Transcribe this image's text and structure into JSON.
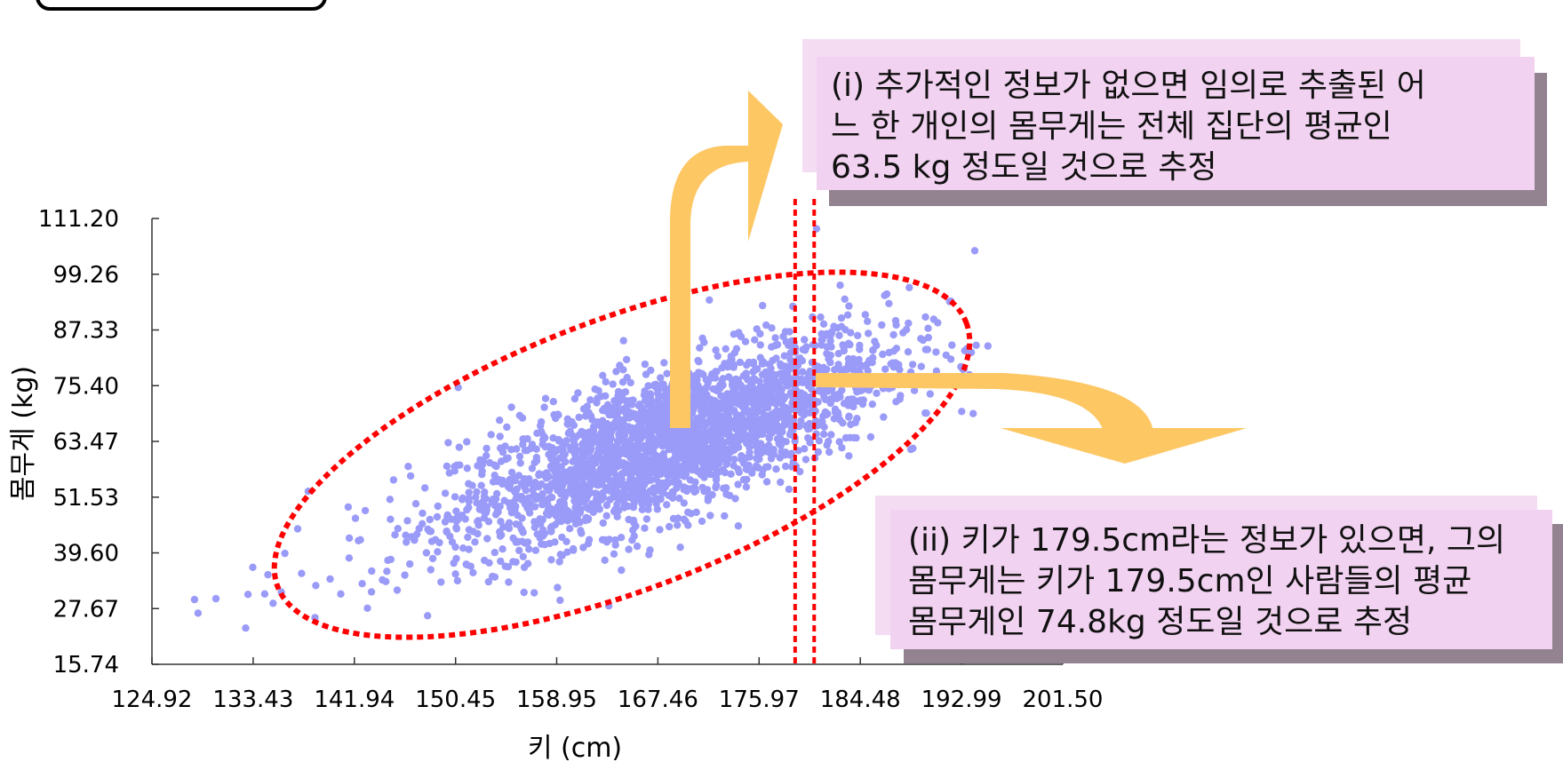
{
  "chart_data": {
    "type": "scatter",
    "title": "",
    "xlabel": "키 (cm)",
    "ylabel": "몸무게 (kg)",
    "xlim": [
      124.92,
      201.5
    ],
    "ylim": [
      15.74,
      111.2
    ],
    "xticks": [
      "124.92",
      "133.43",
      "141.94",
      "150.45",
      "158.95",
      "167.46",
      "175.97",
      "184.48",
      "192.99",
      "201.50"
    ],
    "yticks": [
      "111.20",
      "99.26",
      "87.33",
      "75.40",
      "63.47",
      "51.53",
      "39.60",
      "27.67",
      "15.74"
    ],
    "point_color": "#9a9af8",
    "sample_points": [
      [
        128.5,
        29.6
      ],
      [
        128.8,
        26.7
      ],
      [
        130.3,
        29.8
      ],
      [
        132.8,
        23.5
      ],
      [
        133.0,
        30.7
      ],
      [
        133.4,
        36.5
      ],
      [
        134.4,
        30.8
      ],
      [
        135.1,
        28.8
      ],
      [
        136.1,
        39.5
      ],
      [
        135.8,
        31.2
      ],
      [
        137.5,
        35.2
      ],
      [
        138.7,
        32.6
      ],
      [
        139.9,
        34.0
      ],
      [
        140.8,
        30.8
      ],
      [
        141.5,
        38.5
      ],
      [
        142.6,
        33.0
      ],
      [
        143.4,
        35.7
      ],
      [
        144.3,
        33.8
      ],
      [
        145.0,
        38.2
      ],
      [
        145.6,
        44.8
      ],
      [
        146.3,
        41.9
      ],
      [
        147.2,
        43.6
      ],
      [
        148.0,
        39.6
      ],
      [
        148.9,
        47.3
      ],
      [
        149.7,
        44.1
      ],
      [
        150.5,
        45.0
      ],
      [
        150.8,
        58.4
      ],
      [
        151.4,
        48.8
      ],
      [
        152.3,
        43.7
      ],
      [
        153.0,
        51.2
      ],
      [
        154.4,
        55.1
      ],
      [
        155.5,
        49.6
      ],
      [
        156.2,
        53.8
      ],
      [
        157.1,
        58.9
      ],
      [
        158.0,
        62.3
      ],
      [
        158.9,
        56.4
      ],
      [
        159.5,
        47.5
      ],
      [
        160.3,
        54.9
      ],
      [
        161.0,
        59.6
      ],
      [
        161.9,
        64.3
      ],
      [
        162.6,
        57.3
      ],
      [
        163.5,
        62.1
      ],
      [
        164.1,
        52.6
      ],
      [
        164.8,
        66.0
      ],
      [
        165.4,
        60.7
      ],
      [
        166.2,
        69.4
      ],
      [
        166.9,
        55.2
      ],
      [
        167.5,
        63.5
      ],
      [
        168.2,
        71.0
      ],
      [
        168.9,
        58.3
      ],
      [
        169.6,
        66.8
      ],
      [
        170.4,
        61.7
      ],
      [
        171.1,
        74.6
      ],
      [
        171.9,
        68.2
      ],
      [
        172.6,
        57.1
      ],
      [
        173.3,
        79.4
      ],
      [
        174.0,
        64.4
      ],
      [
        174.8,
        71.2
      ],
      [
        175.6,
        85.2
      ],
      [
        176.3,
        66.3
      ],
      [
        177.1,
        75.5
      ],
      [
        177.8,
        62.6
      ],
      [
        178.6,
        81.0
      ],
      [
        179.2,
        70.5
      ],
      [
        179.9,
        59.6
      ],
      [
        180.7,
        76.8
      ],
      [
        181.4,
        88.6
      ],
      [
        182.2,
        72.6
      ],
      [
        183.0,
        67.4
      ],
      [
        183.9,
        80.2
      ],
      [
        184.9,
        90.6
      ],
      [
        186.4,
        74.8
      ],
      [
        187.3,
        82.8
      ],
      [
        188.6,
        96.4
      ],
      [
        190.2,
        85.7
      ],
      [
        192.0,
        93.4
      ],
      [
        193.2,
        79.0
      ],
      [
        194.1,
        104.3
      ],
      [
        180.8,
        109.0
      ],
      [
        179.4,
        57.0
      ]
    ],
    "reference_lines_x": [
      179.0,
      180.6
    ],
    "ellipse_color": "#ff0000",
    "arrow_color": "#fdc764",
    "note_color": "#f2d2f1",
    "note_shadow_color": "#93828f"
  },
  "notes": {
    "note1": {
      "line1": "(i) 추가적인 정보가 없으면 임의로 추출된 어",
      "line2": "느 한 개인의 몸무게는 전체 집단의 평균인",
      "line3": "63.5 kg 정도일 것으로 추정"
    },
    "note2": {
      "line1": "(ii) 키가 179.5cm라는 정보가 있으면, 그의",
      "line2": "몸무게는 키가 179.5cm인 사람들의 평균",
      "line3": "몸무게인 74.8kg 정도일 것으로 추정"
    }
  }
}
